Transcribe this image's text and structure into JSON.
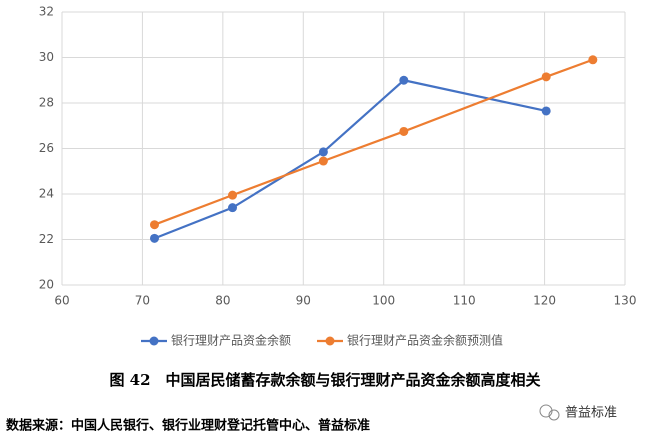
{
  "chart_data": {
    "type": "line",
    "title": "图 42　中国居民储蓄存款余额与银行理财产品资金余额高度相关",
    "source": "数据来源：中国人民银行、银行业理财登记托管中心、普益标准",
    "watermark": "普益标准",
    "xlim": [
      60,
      130
    ],
    "xticks": [
      60,
      70,
      80,
      90,
      100,
      110,
      120,
      130
    ],
    "ylim": [
      20,
      32
    ],
    "yticks": [
      20,
      22,
      24,
      26,
      28,
      30,
      32
    ],
    "grid": true,
    "legend": "bottom",
    "series": [
      {
        "name": "银行理财产品资金余额",
        "color": "#4472c4",
        "x": [
          71.5,
          81.2,
          92.5,
          102.5,
          120.2
        ],
        "values": [
          22.05,
          23.4,
          25.85,
          29.0,
          27.65
        ]
      },
      {
        "name": "银行理财产品资金余额预测值",
        "color": "#ed7d31",
        "x": [
          71.5,
          81.2,
          92.5,
          102.5,
          120.2,
          126
        ],
        "values": [
          22.65,
          23.95,
          25.45,
          26.75,
          29.15,
          29.9
        ]
      }
    ]
  }
}
